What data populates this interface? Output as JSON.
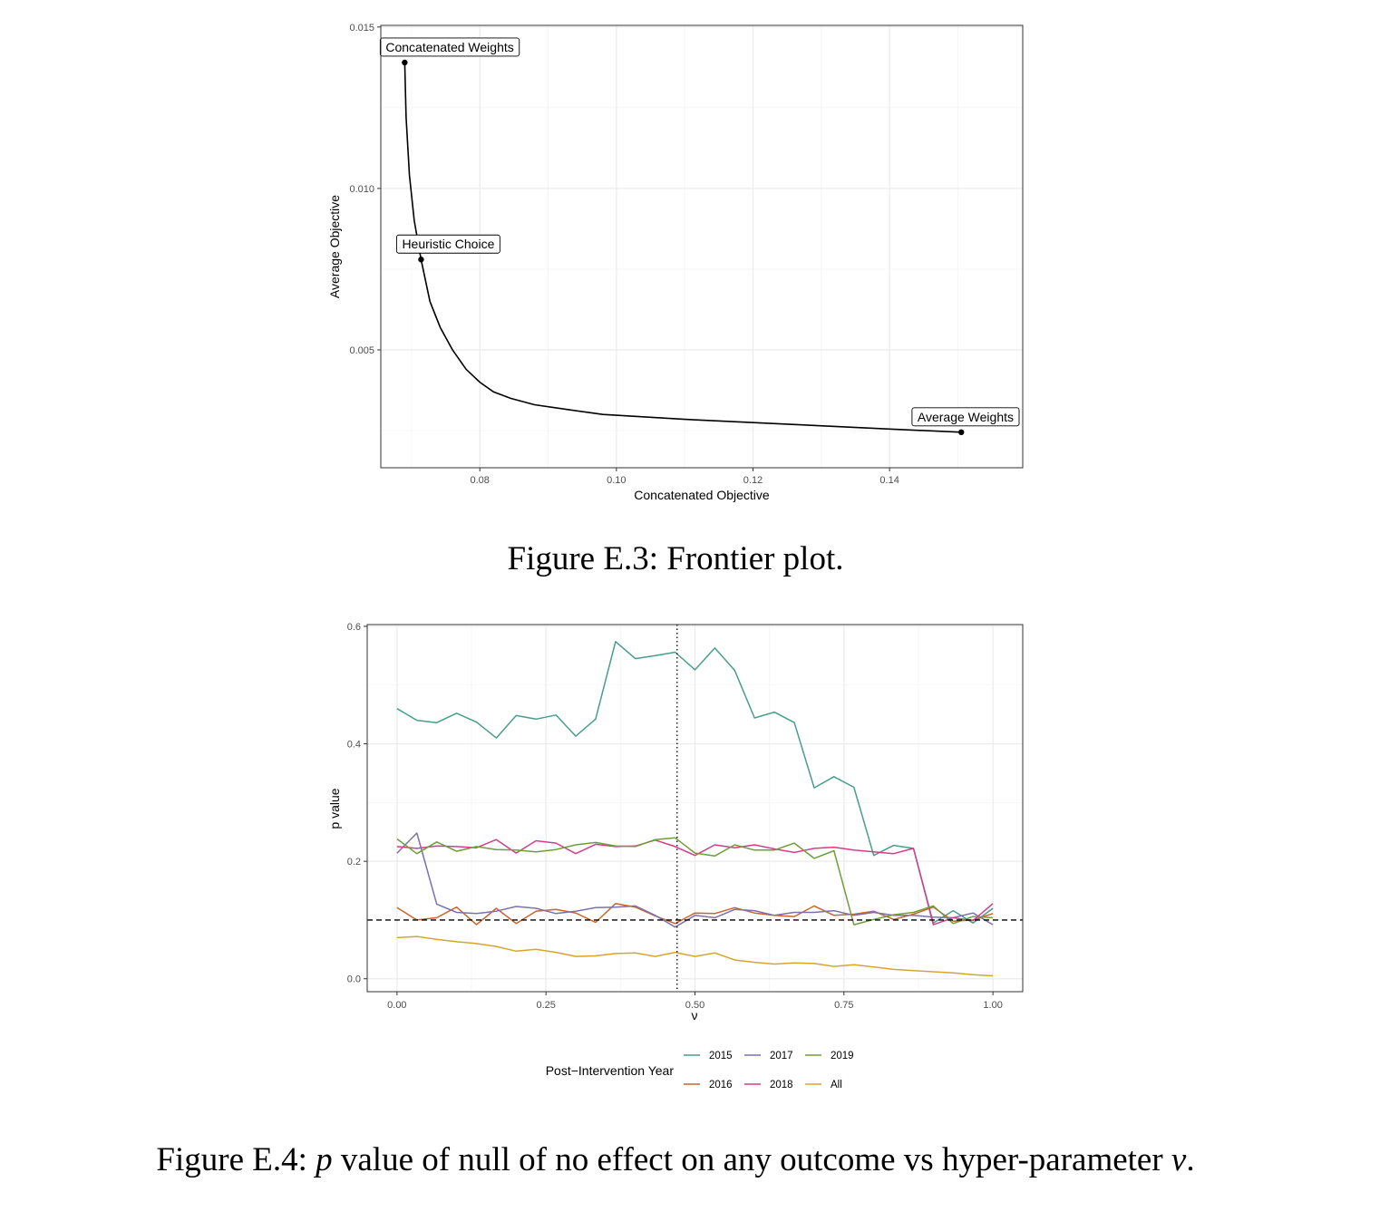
{
  "chart_data": [
    {
      "type": "line",
      "xlabel": "Concatenated Objective",
      "ylabel": "Average Objective",
      "xlim": [
        0.0655,
        0.1595
      ],
      "ylim": [
        0.00135,
        0.01505
      ],
      "x_ticks": [
        0.08,
        0.1,
        0.12,
        0.14
      ],
      "x_tick_labels": [
        "0.08",
        "0.10",
        "0.12",
        "0.14"
      ],
      "y_ticks": [
        0.005,
        0.01,
        0.015
      ],
      "y_tick_labels": [
        "0.005",
        "0.010",
        "0.015"
      ],
      "grid": true,
      "series": [
        {
          "x": [
            0.069,
            0.0692,
            0.0697,
            0.0704,
            0.0714,
            0.0727,
            0.0742,
            0.076,
            0.078,
            0.08,
            0.082,
            0.0845,
            0.088,
            0.093,
            0.098,
            0.11,
            0.125,
            0.14,
            0.1505
          ],
          "y": [
            0.0139,
            0.0122,
            0.0104,
            0.009,
            0.0078,
            0.0065,
            0.0057,
            0.005,
            0.0044,
            0.004,
            0.0037,
            0.0035,
            0.0033,
            0.00315,
            0.003,
            0.00285,
            0.0027,
            0.00255,
            0.00245
          ]
        }
      ],
      "points": [
        {
          "label": "Concatenated Weights",
          "x": 0.069,
          "y": 0.0139
        },
        {
          "label": "Heuristic Choice",
          "x": 0.0714,
          "y": 0.0078
        },
        {
          "label": "Average Weights",
          "x": 0.1505,
          "y": 0.00245
        }
      ],
      "caption": "Figure E.3: Frontier plot."
    },
    {
      "type": "line",
      "xlabel": "ν",
      "ylabel": "p value",
      "xlim": [
        -0.05,
        1.05
      ],
      "ylim": [
        -0.022,
        0.603
      ],
      "x_ticks": [
        0,
        0.25,
        0.5,
        0.75,
        1.0
      ],
      "x_tick_labels": [
        "0.00",
        "0.25",
        "0.50",
        "0.75",
        "1.00"
      ],
      "y_ticks": [
        0,
        0.2,
        0.4,
        0.6
      ],
      "y_tick_labels": [
        "0.0",
        "0.2",
        "0.4",
        "0.6"
      ],
      "grid": true,
      "x": [
        0.0,
        0.0333,
        0.0667,
        0.1,
        0.1333,
        0.1667,
        0.2,
        0.2333,
        0.2667,
        0.3,
        0.3333,
        0.3667,
        0.4,
        0.4333,
        0.4667,
        0.5,
        0.5333,
        0.5667,
        0.6,
        0.6333,
        0.6667,
        0.7,
        0.7333,
        0.7667,
        0.8,
        0.8333,
        0.8667,
        0.9,
        0.9333,
        0.9667,
        1.0
      ],
      "hline": 0.1,
      "vline": 0.47,
      "series": [
        {
          "name": "2015",
          "color": "#479e8a",
          "values": [
            0.46,
            0.44,
            0.436,
            0.452,
            0.437,
            0.41,
            0.448,
            0.442,
            0.449,
            0.413,
            0.442,
            0.574,
            0.545,
            0.55,
            0.556,
            0.526,
            0.563,
            0.525,
            0.444,
            0.454,
            0.436,
            0.325,
            0.344,
            0.326,
            0.21,
            0.227,
            0.222,
            0.095,
            0.116,
            0.095,
            0.12
          ]
        },
        {
          "name": "2016",
          "color": "#c9652d",
          "values": [
            0.121,
            0.1,
            0.104,
            0.122,
            0.092,
            0.12,
            0.094,
            0.115,
            0.118,
            0.112,
            0.096,
            0.128,
            0.122,
            0.107,
            0.094,
            0.112,
            0.111,
            0.121,
            0.112,
            0.108,
            0.106,
            0.124,
            0.108,
            0.11,
            0.115,
            0.101,
            0.11,
            0.122,
            0.098,
            0.1,
            0.111
          ]
        },
        {
          "name": "2017",
          "color": "#7c70ad",
          "values": [
            0.214,
            0.248,
            0.127,
            0.113,
            0.111,
            0.115,
            0.123,
            0.12,
            0.111,
            0.115,
            0.121,
            0.122,
            0.124,
            0.108,
            0.088,
            0.108,
            0.104,
            0.118,
            0.116,
            0.108,
            0.113,
            0.113,
            0.116,
            0.108,
            0.113,
            0.108,
            0.108,
            0.105,
            0.104,
            0.112,
            0.092
          ]
        },
        {
          "name": "2018",
          "color": "#d43d8c",
          "values": [
            0.225,
            0.222,
            0.226,
            0.225,
            0.223,
            0.237,
            0.214,
            0.235,
            0.231,
            0.213,
            0.229,
            0.225,
            0.226,
            0.236,
            0.225,
            0.21,
            0.228,
            0.223,
            0.228,
            0.221,
            0.215,
            0.222,
            0.224,
            0.219,
            0.216,
            0.213,
            0.222,
            0.092,
            0.104,
            0.099,
            0.128
          ]
        },
        {
          "name": "2019",
          "color": "#6e9e3a",
          "values": [
            0.238,
            0.213,
            0.233,
            0.217,
            0.225,
            0.22,
            0.219,
            0.216,
            0.22,
            0.228,
            0.232,
            0.226,
            0.225,
            0.237,
            0.24,
            0.214,
            0.209,
            0.228,
            0.219,
            0.219,
            0.231,
            0.205,
            0.218,
            0.092,
            0.101,
            0.109,
            0.113,
            0.124,
            0.094,
            0.106,
            0.104
          ]
        },
        {
          "name": "All",
          "color": "#d6a531",
          "values": [
            0.07,
            0.072,
            0.067,
            0.063,
            0.06,
            0.055,
            0.047,
            0.05,
            0.045,
            0.038,
            0.039,
            0.043,
            0.044,
            0.038,
            0.045,
            0.038,
            0.044,
            0.032,
            0.028,
            0.025,
            0.027,
            0.026,
            0.021,
            0.024,
            0.02,
            0.016,
            0.014,
            0.012,
            0.01,
            0.007,
            0.005
          ]
        }
      ],
      "legend": {
        "title": "Post−Intervention Year",
        "position": "bottom"
      },
      "caption": "Figure E.4: p value of null of no effect on any outcome vs hyper-parameter ν."
    }
  ]
}
